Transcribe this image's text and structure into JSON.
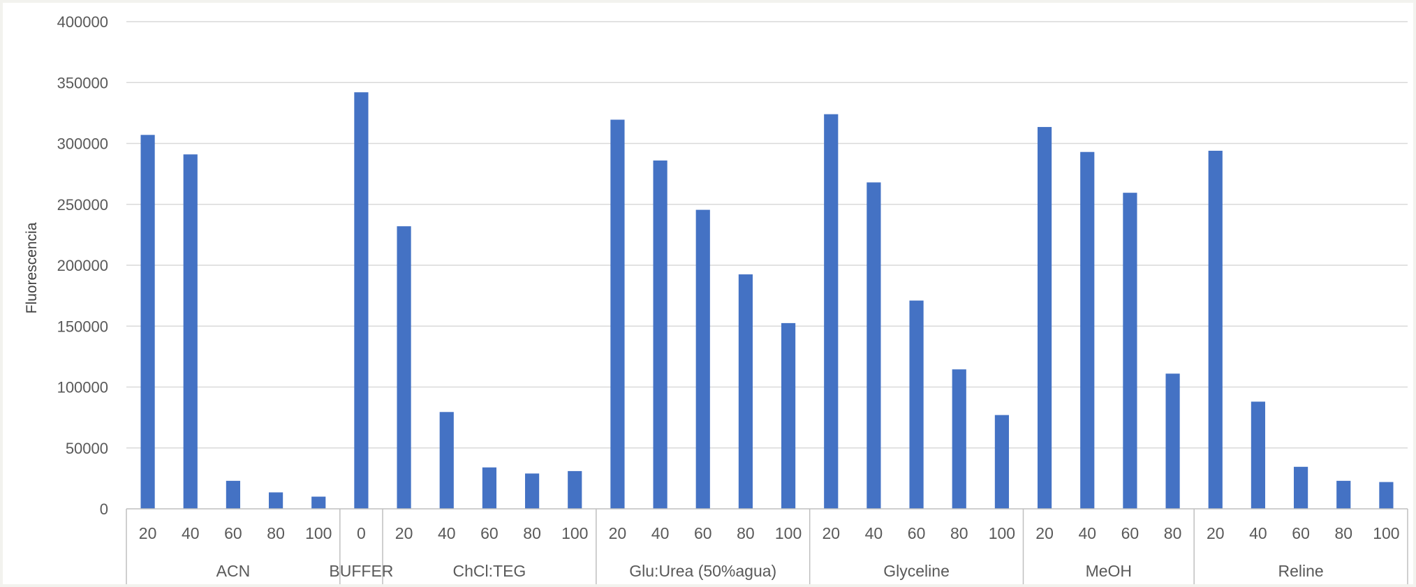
{
  "chart_data": {
    "type": "bar",
    "ylabel": "Fluorescencia",
    "ylim": [
      0,
      400000
    ],
    "yticks": [
      "0",
      "50000",
      "100000",
      "150000",
      "200000",
      "250000",
      "300000",
      "350000",
      "400000"
    ],
    "grid": true,
    "bar_color": "#4472c4",
    "groups": [
      {
        "name": "ACN",
        "categories": [
          "20",
          "40",
          "60",
          "80",
          "100"
        ],
        "values": [
          307000,
          291000,
          23000,
          13500,
          10000
        ]
      },
      {
        "name": "BUFFER",
        "categories": [
          "0"
        ],
        "values": [
          342000
        ]
      },
      {
        "name": "ChCl:TEG",
        "categories": [
          "20",
          "40",
          "60",
          "80",
          "100"
        ],
        "values": [
          232000,
          79500,
          34000,
          29000,
          31000
        ]
      },
      {
        "name": "Glu:Urea (50%agua)",
        "categories": [
          "20",
          "40",
          "60",
          "80",
          "100"
        ],
        "values": [
          319500,
          286000,
          245500,
          192500,
          152500
        ]
      },
      {
        "name": "Glyceline",
        "categories": [
          "20",
          "40",
          "60",
          "80",
          "100"
        ],
        "values": [
          324000,
          268000,
          171000,
          114500,
          77000
        ]
      },
      {
        "name": "MeOH",
        "categories": [
          "20",
          "40",
          "60",
          "80"
        ],
        "values": [
          313500,
          293000,
          259500,
          111000
        ]
      },
      {
        "name": "Reline",
        "categories": [
          "20",
          "40",
          "60",
          "80",
          "100"
        ],
        "values": [
          294000,
          88000,
          34500,
          23000,
          22000
        ]
      }
    ]
  }
}
